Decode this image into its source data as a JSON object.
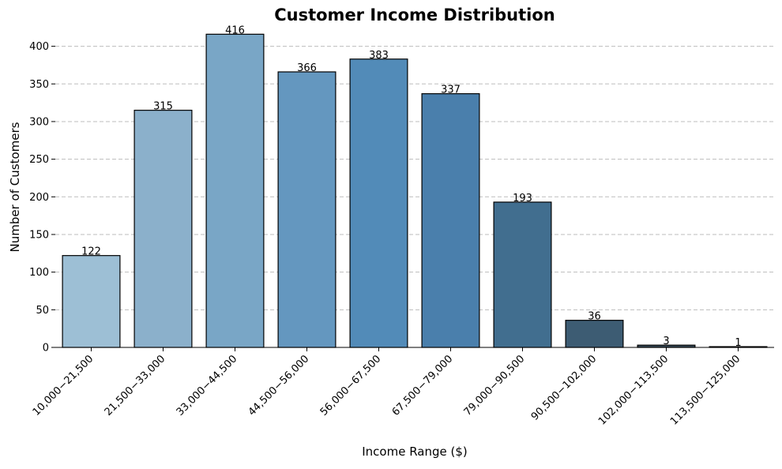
{
  "chart_data": {
    "type": "bar",
    "title": "Customer Income Distribution",
    "xlabel": "Income Range ($)",
    "ylabel": "Number of Customers",
    "categories": [
      "10,000−21,500",
      "21,500−33,000",
      "33,000−44,500",
      "44,500−56,000",
      "56,000−67,500",
      "67,500−79,000",
      "79,000−90,500",
      "90,500−102,000",
      "102,000−113,500",
      "113,500−125,000"
    ],
    "values": [
      122,
      315,
      416,
      366,
      383,
      337,
      193,
      36,
      3,
      1
    ],
    "data_labels": [
      "122",
      "315",
      "416",
      "366",
      "383",
      "337",
      "193",
      "36",
      "3",
      "1"
    ],
    "ylim": [
      0,
      430
    ],
    "yticks": [
      0,
      50,
      100,
      150,
      200,
      250,
      300,
      350,
      400
    ],
    "ytick_labels": [
      "0",
      "50",
      "100",
      "150",
      "200",
      "250",
      "300",
      "350",
      "400"
    ],
    "grid": "horizontal dashed",
    "legend": "none",
    "bar_colors": [
      "#9dbfd5",
      "#8bb0cb",
      "#79a6c6",
      "#6497bf",
      "#528bb8",
      "#4a7fac",
      "#416e8f",
      "#3d5c73",
      "#374a59",
      "#2b343b"
    ]
  }
}
